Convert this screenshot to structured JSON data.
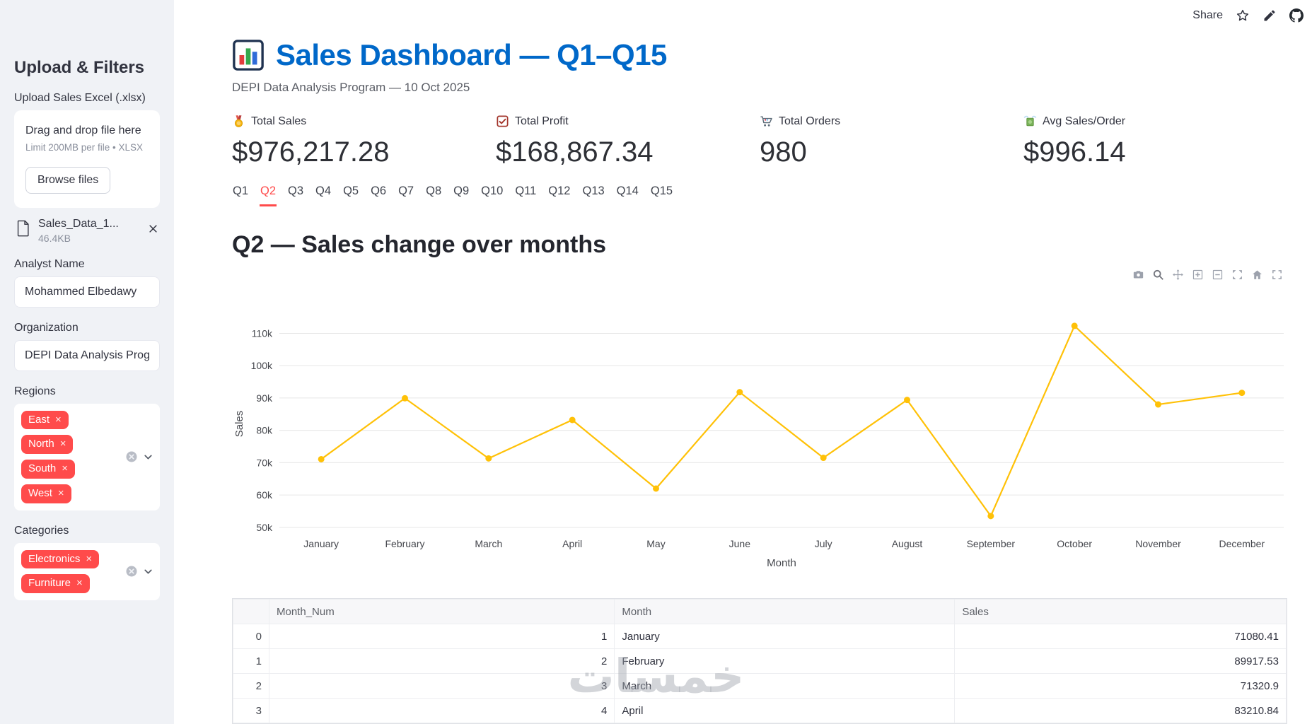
{
  "toolbar": {
    "share_label": "Share",
    "icons": [
      "star-icon",
      "pencil-icon",
      "github-icon"
    ]
  },
  "sidebar": {
    "title": "Upload & Filters",
    "uploader": {
      "label": "Upload Sales Excel (.xlsx)",
      "drop_text": "Drag and drop file here",
      "limit_text": "Limit 200MB per file • XLSX",
      "browse_button": "Browse files",
      "file": {
        "name": "Sales_Data_1...",
        "size": "46.4KB"
      }
    },
    "fields": {
      "analyst": {
        "label": "Analyst Name",
        "value": "Mohammed Elbedawy"
      },
      "organization": {
        "label": "Organization",
        "value": "DEPI Data Analysis Program"
      }
    },
    "regions": {
      "label": "Regions",
      "selected": [
        "East",
        "North",
        "South",
        "West"
      ]
    },
    "categories": {
      "label": "Categories",
      "selected": [
        "Electronics",
        "Furniture"
      ]
    }
  },
  "header": {
    "title": "Sales Dashboard — Q1–Q15",
    "subtitle": "DEPI Data Analysis Program — 10 Oct 2025"
  },
  "metrics": [
    {
      "icon": "medal-icon",
      "label": "Total Sales",
      "value": "$976,217.28"
    },
    {
      "icon": "checkbox-icon",
      "label": "Total Profit",
      "value": "$168,867.34"
    },
    {
      "icon": "cart-icon",
      "label": "Total Orders",
      "value": "980"
    },
    {
      "icon": "money-icon",
      "label": "Avg Sales/Order",
      "value": "$996.14"
    }
  ],
  "tabs": {
    "labels": [
      "Q1",
      "Q2",
      "Q3",
      "Q4",
      "Q5",
      "Q6",
      "Q7",
      "Q8",
      "Q9",
      "Q10",
      "Q11",
      "Q12",
      "Q13",
      "Q14",
      "Q15"
    ],
    "active": "Q2"
  },
  "section_title": "Q2 — Sales change over months",
  "chart_toolbar": [
    "camera-icon",
    "zoom-icon",
    "pan-icon",
    "zoom-in-icon",
    "zoom-out-icon",
    "autoscale-icon",
    "reset-axes-icon",
    "fullscreen-icon"
  ],
  "chart_data": {
    "type": "line",
    "title": "",
    "xlabel": "Month",
    "ylabel": "Sales",
    "x": [
      "January",
      "February",
      "March",
      "April",
      "May",
      "June",
      "July",
      "August",
      "September",
      "October",
      "November",
      "December"
    ],
    "series": [
      {
        "name": "Sales",
        "color": "#ffc107",
        "values": [
          71080.41,
          89917.53,
          71320.9,
          83210.84,
          62000,
          91800,
          71500,
          89400,
          53500,
          112300,
          88000,
          91600
        ]
      }
    ],
    "ylim": [
      48000,
      116000
    ],
    "yticks": [
      50000,
      60000,
      70000,
      80000,
      90000,
      100000,
      110000
    ],
    "ytick_labels": [
      "50k",
      "60k",
      "70k",
      "80k",
      "90k",
      "100k",
      "110k"
    ],
    "grid": "horizontal",
    "legend": "none"
  },
  "table": {
    "columns": [
      "",
      "Month_Num",
      "Month",
      "Sales"
    ],
    "rows": [
      [
        "0",
        "1",
        "January",
        "71080.41"
      ],
      [
        "1",
        "2",
        "February",
        "89917.53"
      ],
      [
        "2",
        "3",
        "March",
        "71320.9"
      ],
      [
        "3",
        "4",
        "April",
        "83210.84"
      ]
    ]
  },
  "watermark": "خمسات",
  "colors": {
    "accent_red": "#ff4b4b",
    "title_blue": "#0068c9",
    "line_gold": "#ffc107",
    "sidebar_bg": "#f0f2f6"
  }
}
